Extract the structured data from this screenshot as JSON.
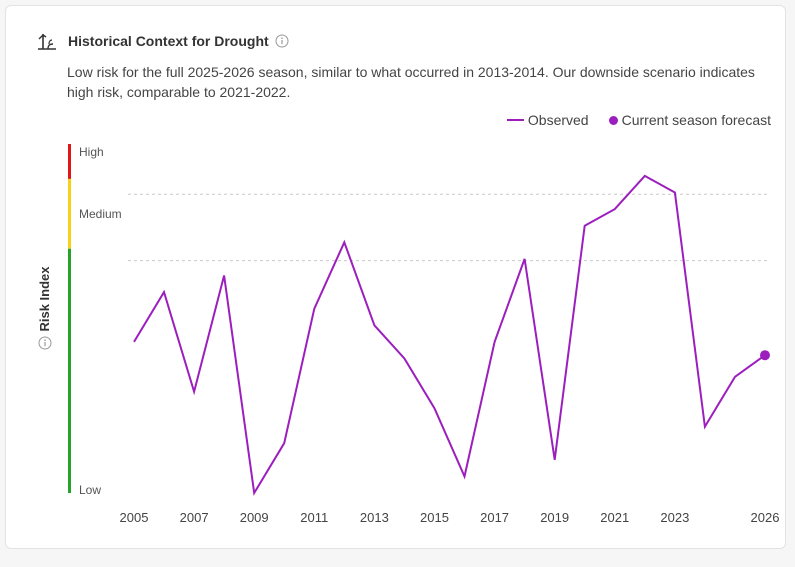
{
  "header": {
    "title": "Historical Context for Drought",
    "icon": "drought-icon",
    "info_icon": "info-icon"
  },
  "description": "Low risk for the full 2025-2026 season, similar to what occurred in 2013-2014. Our downside scenario indicates high risk, comparable to 2021-2022.",
  "legend": {
    "observed": "Observed",
    "forecast": "Current season forecast"
  },
  "colors": {
    "series": "#9c1fbd",
    "high": "#e0161b",
    "medium": "#f4d21a",
    "low": "#27a22b",
    "threshold": "#c9c9c9"
  },
  "chart_data": {
    "type": "line",
    "ylabel": "Risk Index",
    "ylim": [
      0,
      100
    ],
    "risk_levels": [
      {
        "label": "High",
        "from": 90,
        "to": 100
      },
      {
        "label": "Medium",
        "from": 70,
        "to": 90
      },
      {
        "label": "Low",
        "from": 0,
        "to": 70
      }
    ],
    "y_level_labels": [
      {
        "label": "High",
        "value": 100
      },
      {
        "label": "Medium",
        "value": 80
      },
      {
        "label": "Low",
        "value": 0
      }
    ],
    "thresholds": [
      90,
      70
    ],
    "xlim": [
      2005,
      2026
    ],
    "x_ticks": [
      2005,
      2007,
      2009,
      2011,
      2013,
      2015,
      2017,
      2019,
      2021,
      2023,
      2026
    ],
    "series": [
      {
        "name": "Observed",
        "x": [
          2005,
          2006,
          2007,
          2008,
          2009,
          2010,
          2011,
          2012,
          2013,
          2014,
          2015,
          2016,
          2017,
          2018,
          2019,
          2020,
          2021,
          2022,
          2023,
          2024,
          2025,
          2026
        ],
        "values": [
          45.5,
          60.5,
          30.5,
          65.5,
          0,
          15,
          55.5,
          75.5,
          50.5,
          40.5,
          25.5,
          5,
          45.5,
          70.5,
          10,
          80.5,
          85.5,
          95.5,
          90.5,
          20,
          35,
          41.5
        ]
      },
      {
        "name": "Current season forecast",
        "x": [
          2026
        ],
        "values": [
          41.5
        ]
      }
    ]
  }
}
